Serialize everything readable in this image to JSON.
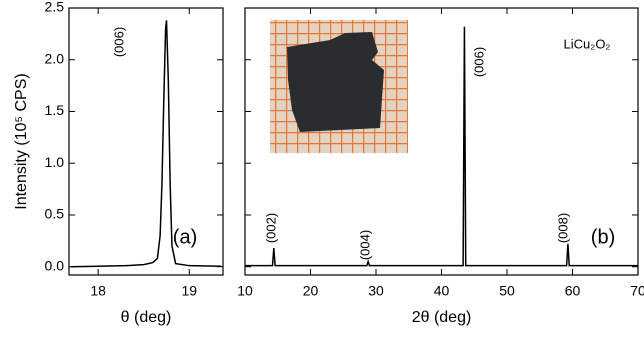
{
  "chart_data": [
    {
      "type": "line",
      "ylabel": "Intensity (10⁵ CPS)",
      "xlabel": "θ (deg)",
      "xlim": [
        17.68,
        19.37
      ],
      "xticks": [
        18,
        19
      ],
      "ylim": [
        -0.08,
        2.5
      ],
      "yticks": [
        {
          "value": 0,
          "label": "0.0"
        },
        0.5,
        {
          "value": 1,
          "label": "1.0"
        },
        1.5,
        {
          "value": 2,
          "label": "2.0"
        },
        2.5
      ],
      "x": [
        17.7,
        18.0,
        18.3,
        18.5,
        18.6,
        18.65,
        18.68,
        18.7,
        18.72,
        18.74,
        18.75,
        18.77,
        18.79,
        18.81,
        18.85,
        19.0,
        19.35
      ],
      "series": [
        {
          "color": "#000000",
          "values": [
            0.0,
            0.005,
            0.01,
            0.02,
            0.04,
            0.08,
            0.3,
            0.8,
            1.6,
            2.3,
            2.38,
            1.8,
            0.8,
            0.2,
            0.03,
            0.01,
            0.005
          ]
        }
      ],
      "annotations": [
        "(006)",
        "(a)"
      ]
    },
    {
      "type": "line",
      "xlabel": "2θ (deg)",
      "xlim": [
        10,
        70
      ],
      "xticks": [
        10,
        20,
        30,
        40,
        50,
        60,
        70
      ],
      "ylim": [
        -0.08,
        2.5
      ],
      "x": [
        10,
        14.2,
        14.4,
        14.6,
        28.6,
        28.8,
        29.0,
        43.3,
        43.5,
        43.7,
        59.1,
        59.3,
        59.5,
        70
      ],
      "series": [
        {
          "color": "#000000",
          "values": [
            0.01,
            0.01,
            0.18,
            0.01,
            0.01,
            0.05,
            0.01,
            0.01,
            2.32,
            0.01,
            0.01,
            0.22,
            0.01,
            0.01
          ]
        }
      ],
      "annotations": [
        "(002)",
        "(004)",
        "(006)",
        "(008)",
        "(b)",
        "LiCu₂O₂"
      ]
    }
  ]
}
